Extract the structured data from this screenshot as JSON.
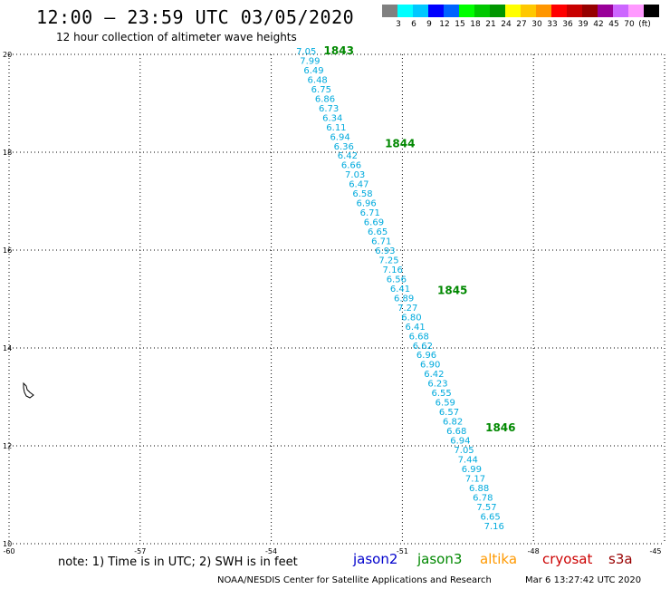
{
  "header": {
    "title": "12:00 — 23:59 UTC 03/05/2020",
    "subtitle": "12 hour collection of altimeter wave heights"
  },
  "legend": {
    "colors": [
      "#808080",
      "#00ffff",
      "#00c8ff",
      "#0000ff",
      "#0064ff",
      "#00ff00",
      "#00c800",
      "#009600",
      "#ffff00",
      "#ffc800",
      "#ff9600",
      "#ff0000",
      "#c80000",
      "#960000",
      "#990099",
      "#cc66ff",
      "#ff99ff",
      "#000000"
    ],
    "labels": [
      "3",
      "6",
      "9",
      "12",
      "15",
      "18",
      "21",
      "24",
      "27",
      "30",
      "33",
      "36",
      "39",
      "42",
      "45",
      "70",
      "(ft)"
    ]
  },
  "map": {
    "lon_ticks": [
      "-60",
      "-57",
      "-54",
      "-51",
      "-48",
      "-45"
    ],
    "lat_ticks": [
      "20",
      "18",
      "16",
      "14",
      "12",
      "10"
    ],
    "lon_range": [
      -60,
      -45
    ],
    "lat_range": [
      10,
      20
    ],
    "grid": "dotted",
    "track_color": "#00aadd",
    "pass_color": "#008800",
    "passes": [
      {
        "label": "1843",
        "lon": -52.8,
        "lat": 20.0
      },
      {
        "label": "1844",
        "lon": -51.4,
        "lat": 18.1
      },
      {
        "label": "1845",
        "lon": -50.2,
        "lat": 15.1
      },
      {
        "label": "1846",
        "lon": -49.1,
        "lat": 12.3
      }
    ],
    "track": {
      "start": {
        "lon": -53.2,
        "lat": 20.0
      },
      "end": {
        "lon": -48.9,
        "lat": 10.3
      },
      "swh": [
        "7.05",
        "7.99",
        "6.49",
        "6.48",
        "6.75",
        "6.86",
        "6.73",
        "6.34",
        "6.11",
        "6.94",
        "6.36",
        "6.42",
        "6.66",
        "7.03",
        "6.47",
        "6.58",
        "6.96",
        "6.71",
        "6.69",
        "6.65",
        "6.71",
        "6.93",
        "7.25",
        "7.16",
        "6.56",
        "6.41",
        "6.89",
        "7.27",
        "6.80",
        "6.41",
        "6.68",
        "6.62",
        "6.96",
        "6.90",
        "6.42",
        "6.23",
        "6.55",
        "6.59",
        "6.57",
        "6.82",
        "6.68",
        "6.94",
        "7.05",
        "7.44",
        "6.99",
        "7.17",
        "6.88",
        "6.78",
        "7.57",
        "6.65",
        "7.16"
      ]
    }
  },
  "footer": {
    "note": "note: 1) Time is in UTC; 2) SWH is in feet",
    "satellites": [
      {
        "name": "jason2",
        "color": "#0000cc"
      },
      {
        "name": "jason3",
        "color": "#008800"
      },
      {
        "name": "altika",
        "color": "#ff9900"
      },
      {
        "name": "cryosat",
        "color": "#cc0000"
      },
      {
        "name": "s3a",
        "color": "#990000"
      }
    ],
    "credit": "NOAA/NESDIS Center for Satellite Applications and Research",
    "timestamp": "Mar 6 13:27:42 UTC 2020"
  }
}
